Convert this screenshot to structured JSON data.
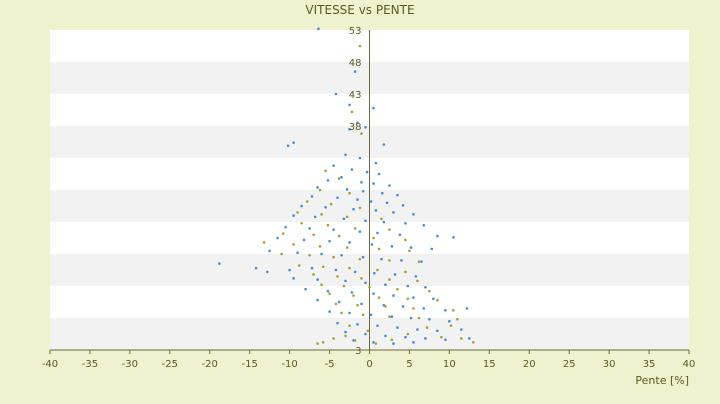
{
  "chart_data": {
    "type": "scatter",
    "title": "VITESSE vs PENTE",
    "xlabel": "Pente [%]",
    "ylabel": "",
    "xlim": [
      -40,
      40
    ],
    "ylim": [
      3,
      53
    ],
    "x_ticks": [
      -40,
      -35,
      -30,
      -25,
      -20,
      -15,
      -10,
      -5,
      0,
      5,
      10,
      15,
      20,
      25,
      30,
      35,
      40
    ],
    "y_ticks": [
      53,
      48,
      43,
      38,
      33,
      28,
      23,
      18,
      13,
      8,
      3
    ],
    "y_tick_labels": [
      "53",
      "48",
      "43",
      "38",
      "",
      "",
      "",
      "",
      "",
      "",
      "3"
    ],
    "grid": "alternating horizontal bands",
    "legend": "none",
    "colors": {
      "background": "#eef2cf",
      "plot_band_white": "#ffffff",
      "plot_band_gray": "#f2f2f2",
      "axis": "#6a6a3a",
      "text": "#5b5b1f",
      "series_a": "#3f8fd8",
      "series_b": "#a6a02e"
    },
    "series": [
      {
        "color": "#3f8fd8",
        "points": [
          {
            "x": -6.4,
            "y": 53.2
          },
          {
            "x": -1.8,
            "y": 46.5
          },
          {
            "x": -4.2,
            "y": 43.0
          },
          {
            "x": -2.5,
            "y": 41.3
          },
          {
            "x": 0.5,
            "y": 40.8
          },
          {
            "x": -1.5,
            "y": 38.5
          },
          {
            "x": -0.5,
            "y": 37.8
          },
          {
            "x": -2.5,
            "y": 37.5
          },
          {
            "x": -10.2,
            "y": 34.9
          },
          {
            "x": -9.5,
            "y": 35.4
          },
          {
            "x": 1.8,
            "y": 35.1
          },
          {
            "x": -3.0,
            "y": 33.5
          },
          {
            "x": -1.2,
            "y": 33.0
          },
          {
            "x": 0.8,
            "y": 32.2
          },
          {
            "x": -4.5,
            "y": 31.8
          },
          {
            "x": -2.2,
            "y": 31.2
          },
          {
            "x": -0.3,
            "y": 30.8
          },
          {
            "x": 1.2,
            "y": 30.5
          },
          {
            "x": -3.5,
            "y": 30.0
          },
          {
            "x": -5.2,
            "y": 29.5
          },
          {
            "x": -1.0,
            "y": 29.2
          },
          {
            "x": 0.5,
            "y": 29.0
          },
          {
            "x": 2.5,
            "y": 28.7
          },
          {
            "x": -6.5,
            "y": 28.4
          },
          {
            "x": -2.8,
            "y": 28.1
          },
          {
            "x": -0.8,
            "y": 27.8
          },
          {
            "x": 1.6,
            "y": 27.5
          },
          {
            "x": 3.5,
            "y": 27.2
          },
          {
            "x": -7.2,
            "y": 27.0
          },
          {
            "x": -4.0,
            "y": 26.8
          },
          {
            "x": -1.5,
            "y": 26.5
          },
          {
            "x": 0.2,
            "y": 26.2
          },
          {
            "x": 2.2,
            "y": 26.0
          },
          {
            "x": 4.2,
            "y": 25.6
          },
          {
            "x": -8.5,
            "y": 25.5
          },
          {
            "x": -5.5,
            "y": 25.3
          },
          {
            "x": -2.0,
            "y": 25.0
          },
          {
            "x": 0.8,
            "y": 24.8
          },
          {
            "x": 3.0,
            "y": 24.5
          },
          {
            "x": 5.5,
            "y": 24.2
          },
          {
            "x": -9.5,
            "y": 24.0
          },
          {
            "x": -6.8,
            "y": 23.8
          },
          {
            "x": -3.2,
            "y": 23.5
          },
          {
            "x": -0.5,
            "y": 23.2
          },
          {
            "x": 1.8,
            "y": 23.0
          },
          {
            "x": 4.5,
            "y": 22.8
          },
          {
            "x": 6.8,
            "y": 22.5
          },
          {
            "x": -10.5,
            "y": 22.2
          },
          {
            "x": -7.5,
            "y": 22.0
          },
          {
            "x": -4.5,
            "y": 21.8
          },
          {
            "x": -1.2,
            "y": 21.5
          },
          {
            "x": 1.0,
            "y": 21.3
          },
          {
            "x": 3.8,
            "y": 21.0
          },
          {
            "x": 8.5,
            "y": 20.8
          },
          {
            "x": 10.5,
            "y": 20.6
          },
          {
            "x": -11.5,
            "y": 20.5
          },
          {
            "x": -8.2,
            "y": 20.2
          },
          {
            "x": -5.0,
            "y": 20.0
          },
          {
            "x": -2.5,
            "y": 19.8
          },
          {
            "x": 0.3,
            "y": 19.5
          },
          {
            "x": 2.8,
            "y": 19.2
          },
          {
            "x": 5.2,
            "y": 19.0
          },
          {
            "x": 7.8,
            "y": 18.8
          },
          {
            "x": -12.5,
            "y": 18.5
          },
          {
            "x": -9.0,
            "y": 18.2
          },
          {
            "x": -6.0,
            "y": 18.0
          },
          {
            "x": -3.5,
            "y": 17.8
          },
          {
            "x": -0.8,
            "y": 17.5
          },
          {
            "x": 1.5,
            "y": 17.2
          },
          {
            "x": 4.0,
            "y": 17.0
          },
          {
            "x": 6.5,
            "y": 16.8
          },
          {
            "x": -18.8,
            "y": 16.5
          },
          {
            "x": -14.2,
            "y": 15.8
          },
          {
            "x": -12.8,
            "y": 15.2
          },
          {
            "x": -10.0,
            "y": 15.5
          },
          {
            "x": -7.2,
            "y": 15.8
          },
          {
            "x": -4.2,
            "y": 15.5
          },
          {
            "x": -1.8,
            "y": 15.2
          },
          {
            "x": 0.6,
            "y": 15.0
          },
          {
            "x": 3.2,
            "y": 14.8
          },
          {
            "x": 5.8,
            "y": 14.5
          },
          {
            "x": -9.5,
            "y": 14.2
          },
          {
            "x": -6.5,
            "y": 14.0
          },
          {
            "x": -3.0,
            "y": 13.8
          },
          {
            "x": -0.5,
            "y": 13.5
          },
          {
            "x": 2.0,
            "y": 13.2
          },
          {
            "x": 4.8,
            "y": 13.0
          },
          {
            "x": 7.0,
            "y": 12.8
          },
          {
            "x": -8.0,
            "y": 12.5
          },
          {
            "x": -5.2,
            "y": 12.2
          },
          {
            "x": -2.2,
            "y": 12.0
          },
          {
            "x": 0.5,
            "y": 11.8
          },
          {
            "x": 3.0,
            "y": 11.5
          },
          {
            "x": 5.5,
            "y": 11.2
          },
          {
            "x": 8.0,
            "y": 11.0
          },
          {
            "x": -6.5,
            "y": 10.8
          },
          {
            "x": -3.8,
            "y": 10.5
          },
          {
            "x": -1.0,
            "y": 10.2
          },
          {
            "x": 1.8,
            "y": 10.0
          },
          {
            "x": 4.2,
            "y": 9.8
          },
          {
            "x": 6.8,
            "y": 9.5
          },
          {
            "x": 9.5,
            "y": 9.2
          },
          {
            "x": 12.2,
            "y": 9.5
          },
          {
            "x": -5.0,
            "y": 9.0
          },
          {
            "x": -2.5,
            "y": 8.8
          },
          {
            "x": 0.2,
            "y": 8.5
          },
          {
            "x": 2.8,
            "y": 8.2
          },
          {
            "x": 5.2,
            "y": 8.0
          },
          {
            "x": 7.5,
            "y": 7.8
          },
          {
            "x": 10.0,
            "y": 7.5
          },
          {
            "x": -4.0,
            "y": 7.2
          },
          {
            "x": -1.5,
            "y": 7.0
          },
          {
            "x": 1.0,
            "y": 6.8
          },
          {
            "x": 3.5,
            "y": 6.5
          },
          {
            "x": 6.0,
            "y": 6.2
          },
          {
            "x": 8.5,
            "y": 6.0
          },
          {
            "x": 11.5,
            "y": 6.2
          },
          {
            "x": -3.0,
            "y": 5.8
          },
          {
            "x": -0.5,
            "y": 5.5
          },
          {
            "x": 2.0,
            "y": 5.2
          },
          {
            "x": 4.5,
            "y": 5.0
          },
          {
            "x": 7.0,
            "y": 4.8
          },
          {
            "x": 9.5,
            "y": 4.6
          },
          {
            "x": 12.5,
            "y": 4.8
          },
          {
            "x": -2.0,
            "y": 4.5
          },
          {
            "x": 0.5,
            "y": 4.2
          },
          {
            "x": 3.0,
            "y": 4.0
          },
          {
            "x": 5.5,
            "y": 4.2
          }
        ]
      },
      {
        "color": "#a6a02e",
        "points": [
          {
            "x": -1.2,
            "y": 50.5
          },
          {
            "x": -2.2,
            "y": 40.2
          },
          {
            "x": -1.0,
            "y": 36.8
          },
          {
            "x": -5.5,
            "y": 31.0
          },
          {
            "x": -3.8,
            "y": 29.8
          },
          {
            "x": -6.2,
            "y": 28.0
          },
          {
            "x": -2.5,
            "y": 27.5
          },
          {
            "x": -7.8,
            "y": 26.2
          },
          {
            "x": -4.8,
            "y": 25.8
          },
          {
            "x": -1.2,
            "y": 25.2
          },
          {
            "x": -9.0,
            "y": 24.5
          },
          {
            "x": -6.0,
            "y": 24.2
          },
          {
            "x": -2.8,
            "y": 23.8
          },
          {
            "x": 1.5,
            "y": 23.5
          },
          {
            "x": -8.5,
            "y": 22.8
          },
          {
            "x": -5.2,
            "y": 22.5
          },
          {
            "x": -1.8,
            "y": 22.0
          },
          {
            "x": 2.5,
            "y": 21.8
          },
          {
            "x": -10.8,
            "y": 21.2
          },
          {
            "x": -7.0,
            "y": 21.0
          },
          {
            "x": -3.8,
            "y": 20.8
          },
          {
            "x": 0.5,
            "y": 20.5
          },
          {
            "x": 4.5,
            "y": 20.2
          },
          {
            "x": -13.2,
            "y": 19.8
          },
          {
            "x": -9.5,
            "y": 19.5
          },
          {
            "x": -6.2,
            "y": 19.2
          },
          {
            "x": -2.8,
            "y": 19.0
          },
          {
            "x": 1.2,
            "y": 18.8
          },
          {
            "x": 5.0,
            "y": 18.5
          },
          {
            "x": -11.0,
            "y": 18.0
          },
          {
            "x": -7.5,
            "y": 17.8
          },
          {
            "x": -4.5,
            "y": 17.5
          },
          {
            "x": -1.2,
            "y": 17.2
          },
          {
            "x": 2.5,
            "y": 17.0
          },
          {
            "x": 6.2,
            "y": 16.8
          },
          {
            "x": -8.8,
            "y": 16.2
          },
          {
            "x": -5.8,
            "y": 16.0
          },
          {
            "x": -2.5,
            "y": 15.8
          },
          {
            "x": 1.0,
            "y": 15.5
          },
          {
            "x": 4.5,
            "y": 15.2
          },
          {
            "x": -7.0,
            "y": 14.8
          },
          {
            "x": -4.0,
            "y": 14.5
          },
          {
            "x": -1.0,
            "y": 14.2
          },
          {
            "x": 2.5,
            "y": 14.0
          },
          {
            "x": 6.0,
            "y": 13.8
          },
          {
            "x": -6.0,
            "y": 13.2
          },
          {
            "x": -3.2,
            "y": 13.0
          },
          {
            "x": 0.0,
            "y": 12.8
          },
          {
            "x": 3.5,
            "y": 12.5
          },
          {
            "x": 7.5,
            "y": 12.2
          },
          {
            "x": -5.0,
            "y": 11.8
          },
          {
            "x": -2.0,
            "y": 11.5
          },
          {
            "x": 1.2,
            "y": 11.2
          },
          {
            "x": 4.8,
            "y": 11.0
          },
          {
            "x": 8.5,
            "y": 10.8
          },
          {
            "x": -4.2,
            "y": 10.2
          },
          {
            "x": -1.5,
            "y": 10.0
          },
          {
            "x": 2.0,
            "y": 9.8
          },
          {
            "x": 5.5,
            "y": 9.5
          },
          {
            "x": 10.5,
            "y": 9.2
          },
          {
            "x": -3.5,
            "y": 8.8
          },
          {
            "x": -0.8,
            "y": 8.5
          },
          {
            "x": 2.5,
            "y": 8.2
          },
          {
            "x": 6.2,
            "y": 8.0
          },
          {
            "x": 11.0,
            "y": 7.8
          },
          {
            "x": -6.5,
            "y": 4.0
          },
          {
            "x": -5.8,
            "y": 4.2
          },
          {
            "x": -4.5,
            "y": 4.8
          },
          {
            "x": -3.0,
            "y": 5.2
          },
          {
            "x": -1.8,
            "y": 4.5
          },
          {
            "x": 0.8,
            "y": 4.0
          },
          {
            "x": 2.8,
            "y": 4.6
          },
          {
            "x": 4.8,
            "y": 5.5
          },
          {
            "x": 7.2,
            "y": 6.5
          },
          {
            "x": 9.0,
            "y": 5.0
          },
          {
            "x": 11.5,
            "y": 4.8
          },
          {
            "x": 13.0,
            "y": 4.2
          },
          {
            "x": 10.2,
            "y": 6.8
          },
          {
            "x": -0.2,
            "y": 6.0
          },
          {
            "x": -2.5,
            "y": 6.8
          }
        ]
      }
    ]
  }
}
